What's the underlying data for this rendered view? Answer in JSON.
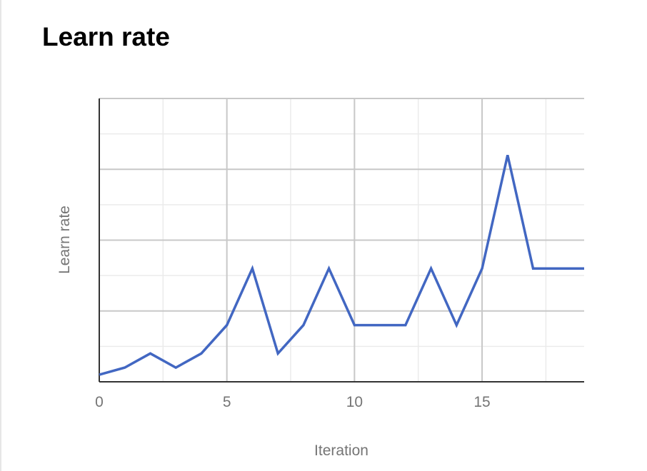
{
  "card": {
    "title": "Learn rate"
  },
  "colors": {
    "line": "#4267c2",
    "grid_major": "#c8c8c8",
    "grid_minor": "#ebebeb",
    "axis": "#333333",
    "text_muted": "#757575"
  },
  "chart_data": {
    "type": "line",
    "title": "",
    "xlabel": "Iteration",
    "ylabel": "Learn rate",
    "xlim": [
      0,
      19
    ],
    "ylim": [
      0,
      8
    ],
    "x_ticks": [
      0,
      5,
      10,
      15
    ],
    "x_tick_labels": [
      "0",
      "5",
      "10",
      "15"
    ],
    "y_tick_labels_shown": false,
    "grid": true,
    "legend": "none",
    "series": [
      {
        "color": "#4267c2",
        "x": [
          0,
          1,
          2,
          3,
          4,
          5,
          6,
          7,
          8,
          9,
          10,
          11,
          12,
          13,
          14,
          15,
          16,
          17,
          18,
          19
        ],
        "y": [
          0.2,
          0.4,
          0.8,
          0.4,
          0.8,
          1.6,
          3.2,
          0.8,
          1.6,
          3.2,
          1.6,
          1.6,
          1.6,
          3.2,
          1.6,
          3.2,
          6.4,
          3.2,
          3.2,
          3.2
        ]
      }
    ]
  }
}
